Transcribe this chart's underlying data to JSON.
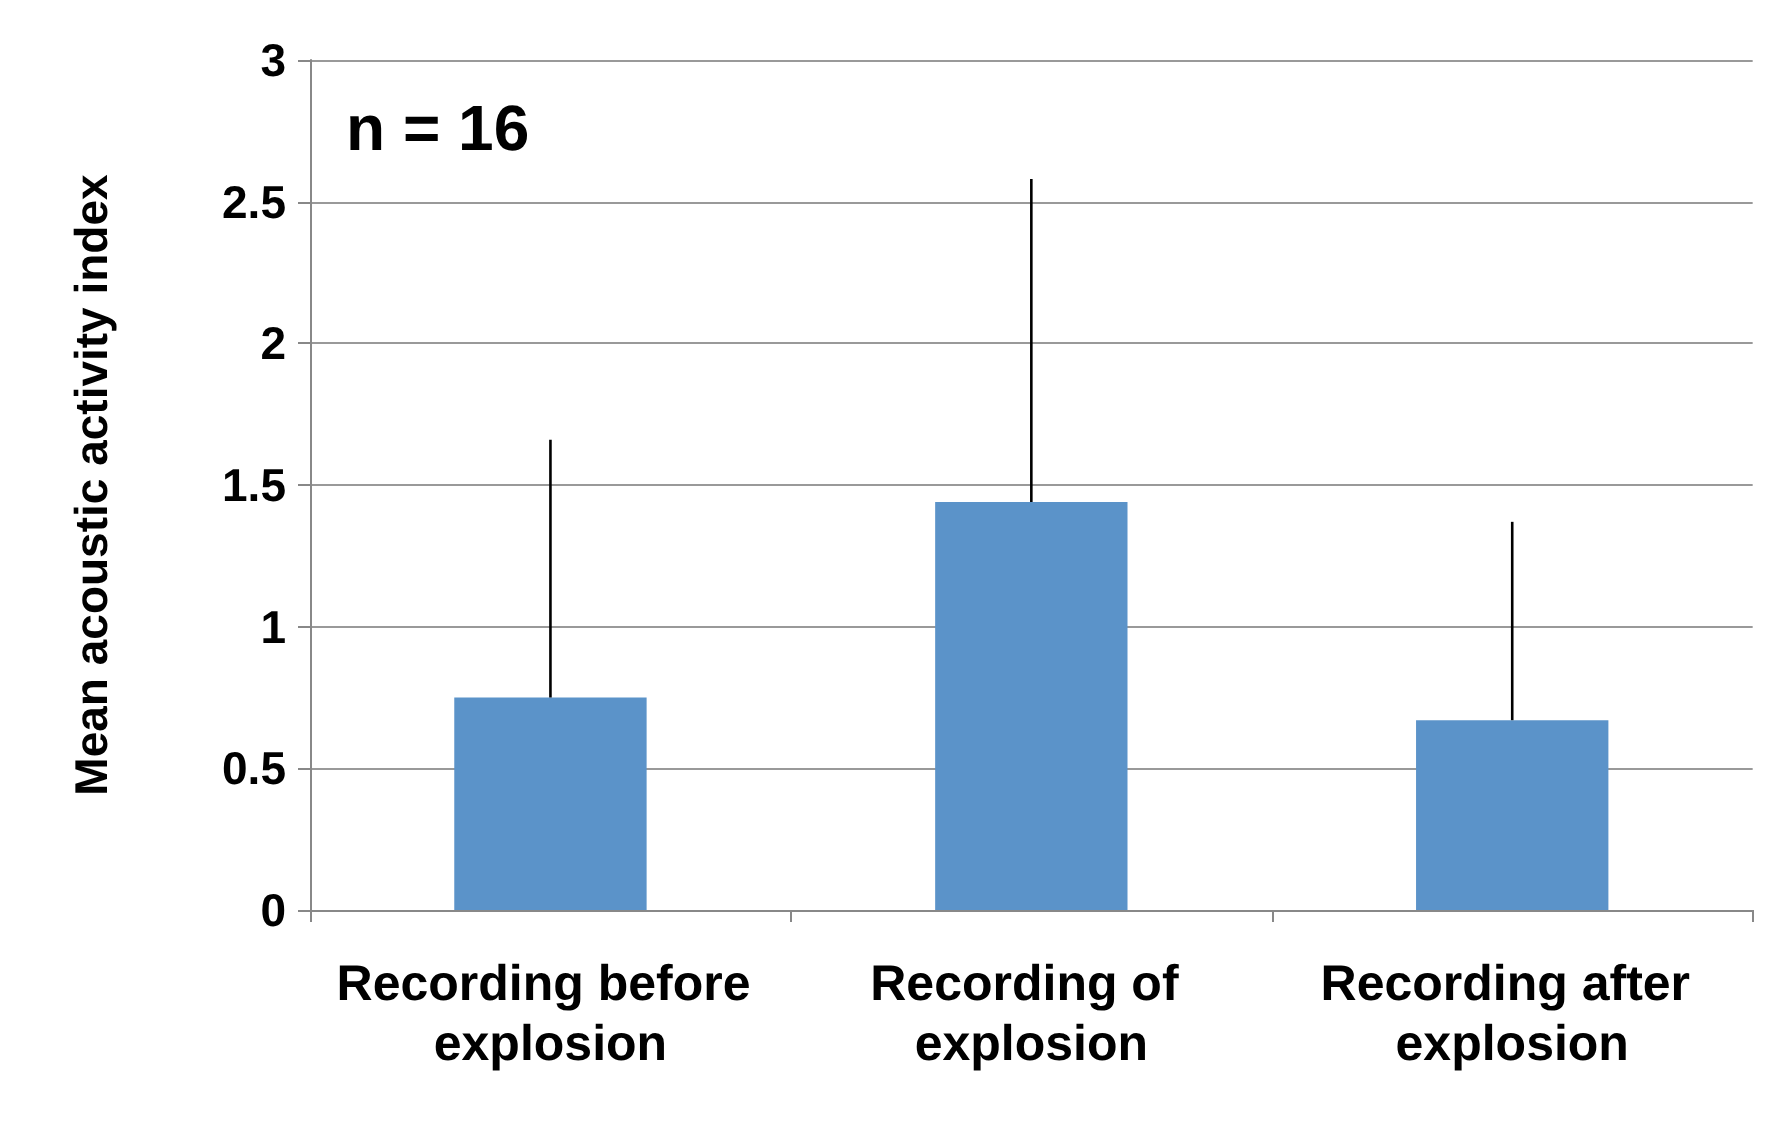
{
  "chart_data": {
    "type": "bar",
    "ylabel": "Mean acoustic activity index",
    "categories": [
      "Recording before explosion",
      "Recording of explosion",
      "Recording after explosion"
    ],
    "values": [
      0.75,
      1.44,
      0.67
    ],
    "errors": [
      [
        0.75,
        1.66
      ],
      [
        1.44,
        2.58
      ],
      [
        0.67,
        1.37
      ]
    ],
    "color": "#5b93c9",
    "ylim": [
      0,
      3
    ],
    "yticks": [
      0,
      0.5,
      1,
      1.5,
      2,
      2.5,
      3
    ],
    "grid": "y",
    "annotations": [
      "n = 16"
    ]
  }
}
